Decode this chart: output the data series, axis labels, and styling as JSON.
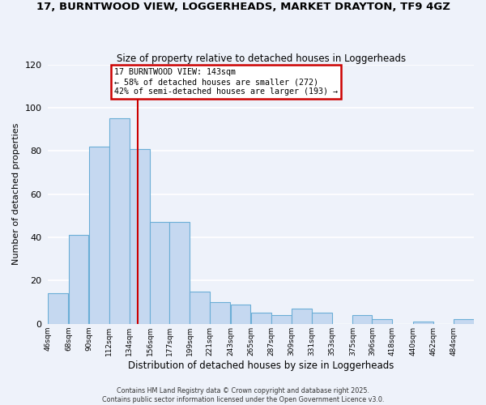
{
  "title": "17, BURNTWOOD VIEW, LOGGERHEADS, MARKET DRAYTON, TF9 4GZ",
  "subtitle": "Size of property relative to detached houses in Loggerheads",
  "xlabel": "Distribution of detached houses by size in Loggerheads",
  "ylabel": "Number of detached properties",
  "bar_labels": [
    "46sqm",
    "68sqm",
    "90sqm",
    "112sqm",
    "134sqm",
    "156sqm",
    "177sqm",
    "199sqm",
    "221sqm",
    "243sqm",
    "265sqm",
    "287sqm",
    "309sqm",
    "331sqm",
    "353sqm",
    "375sqm",
    "396sqm",
    "418sqm",
    "440sqm",
    "462sqm",
    "484sqm"
  ],
  "bar_values": [
    14,
    41,
    82,
    95,
    81,
    47,
    47,
    15,
    10,
    9,
    5,
    4,
    7,
    5,
    0,
    4,
    2,
    0,
    1,
    0,
    2
  ],
  "bar_color": "#c5d8f0",
  "bar_edgecolor": "#6baed6",
  "background_color": "#eef2fa",
  "grid_color": "#ffffff",
  "ylim": [
    0,
    120
  ],
  "yticks": [
    0,
    20,
    40,
    60,
    80,
    100,
    120
  ],
  "property_line_label": "17 BURNTWOOD VIEW: 143sqm",
  "annotation_line1": "← 58% of detached houses are smaller (272)",
  "annotation_line2": "42% of semi-detached houses are larger (193) →",
  "annotation_box_color": "#ffffff",
  "annotation_box_edgecolor": "#cc0000",
  "vline_color": "#cc0000",
  "footer1": "Contains HM Land Registry data © Crown copyright and database right 2025.",
  "footer2": "Contains public sector information licensed under the Open Government Licence v3.0.",
  "bin_edges": [
    46,
    68,
    90,
    112,
    134,
    156,
    177,
    199,
    221,
    243,
    265,
    287,
    309,
    331,
    353,
    375,
    396,
    418,
    440,
    462,
    484,
    506
  ],
  "vline_x": 143
}
